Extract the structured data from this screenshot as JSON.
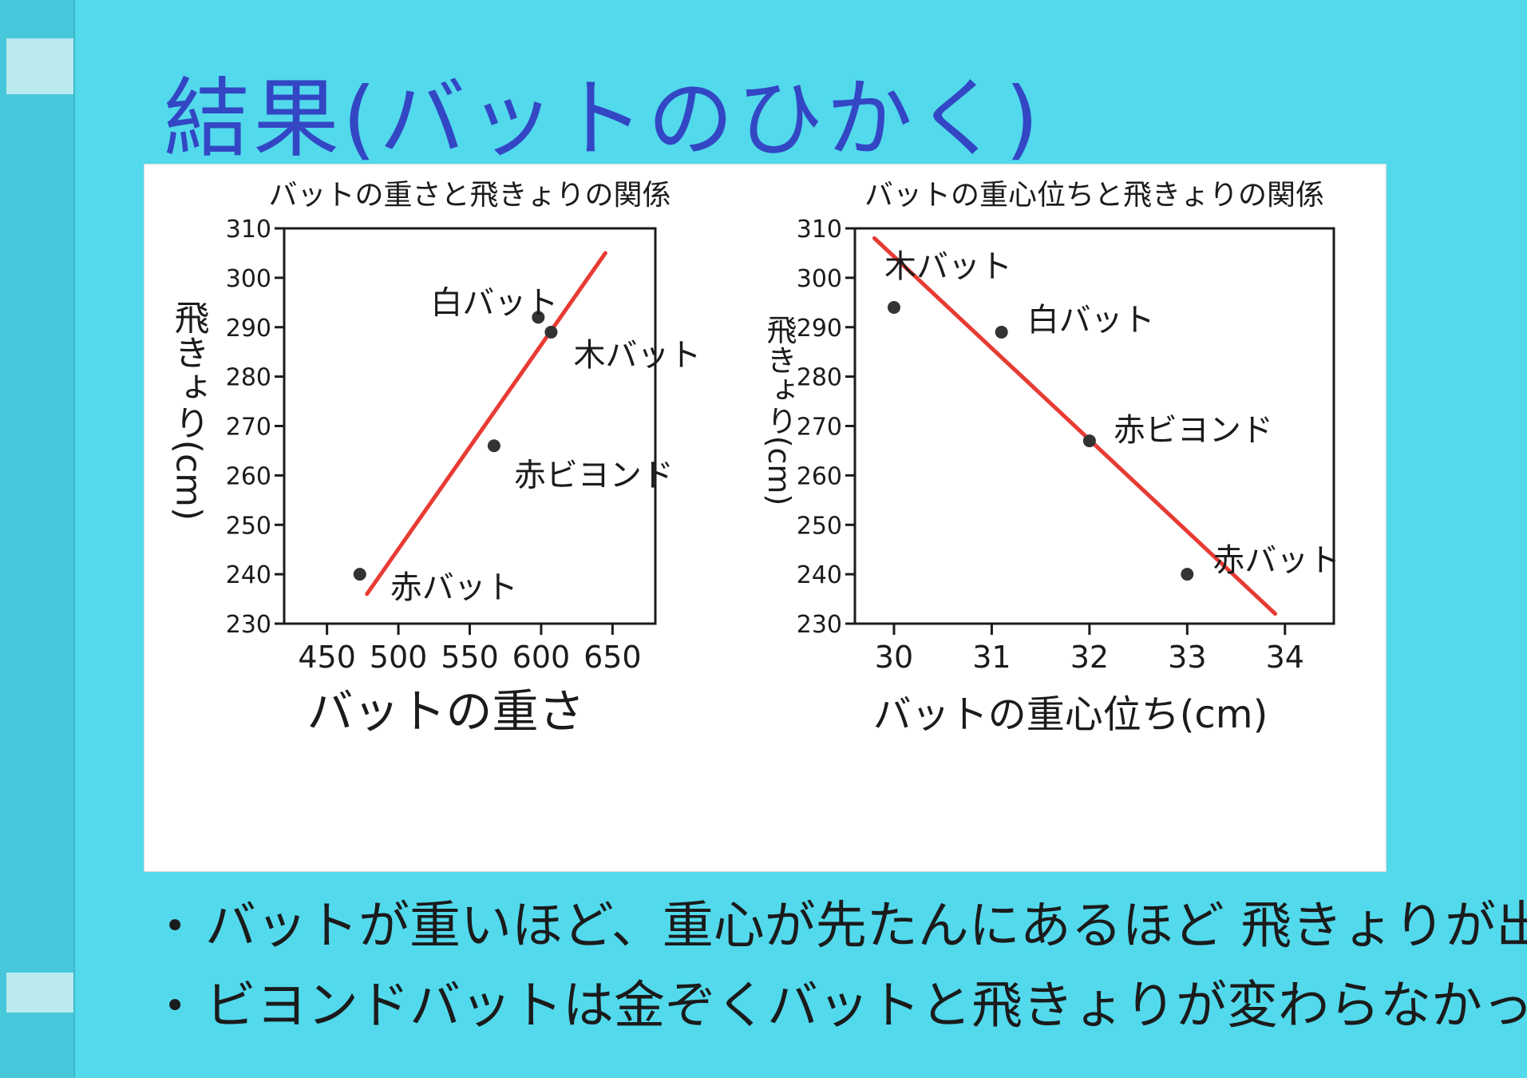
{
  "page_title": "結果(バットのひかく)",
  "colors": {
    "board": "#52d9ec",
    "title": "#3346c4",
    "trend": "#e83b34",
    "point": "#333333",
    "ink": "#1b1b1b"
  },
  "chart_data": [
    {
      "type": "scatter",
      "title": "バットの重さと飛きょりの関係",
      "xlabel": "バットの重さ",
      "ylabel": "飛きょり(cm)",
      "xlim": [
        420,
        680
      ],
      "ylim": [
        230,
        310
      ],
      "x_ticks": [
        450,
        500,
        550,
        600,
        650
      ],
      "y_ticks": [
        230,
        240,
        250,
        260,
        270,
        280,
        290,
        300,
        310
      ],
      "grid": false,
      "points": [
        {
          "label": "白バット",
          "x": 598,
          "y": 292
        },
        {
          "label": "木バット",
          "x": 607,
          "y": 289
        },
        {
          "label": "赤ビヨンド",
          "x": 567,
          "y": 266
        },
        {
          "label": "赤バット",
          "x": 473,
          "y": 240
        }
      ],
      "trendline": {
        "x": [
          478,
          645
        ],
        "y": [
          236,
          305
        ]
      }
    },
    {
      "type": "scatter",
      "title": "バットの重心位ちと飛きょりの関係",
      "xlabel": "バットの重心位ち(cm)",
      "ylabel": "飛きょり(cm)",
      "xlim": [
        29.6,
        34.5
      ],
      "ylim": [
        230,
        310
      ],
      "x_ticks": [
        30,
        31,
        32,
        33,
        34
      ],
      "y_ticks": [
        230,
        240,
        250,
        260,
        270,
        280,
        290,
        300,
        310
      ],
      "grid": false,
      "points": [
        {
          "label": "木バット",
          "x": 30,
          "y": 294
        },
        {
          "label": "白バット",
          "x": 31.1,
          "y": 289
        },
        {
          "label": "赤ビヨンド",
          "x": 32,
          "y": 267
        },
        {
          "label": "赤バット",
          "x": 33,
          "y": 240
        }
      ],
      "trendline": {
        "x": [
          29.8,
          33.9
        ],
        "y": [
          308,
          232
        ]
      }
    }
  ],
  "conclusions": [
    {
      "bullet": "•",
      "text": "バットが重いほど、重心が先たんにあるほど 飛きょりが出た"
    },
    {
      "bullet": "•",
      "text": "ビヨンドバットは金ぞくバットと飛きょりが変わらなかった"
    }
  ]
}
